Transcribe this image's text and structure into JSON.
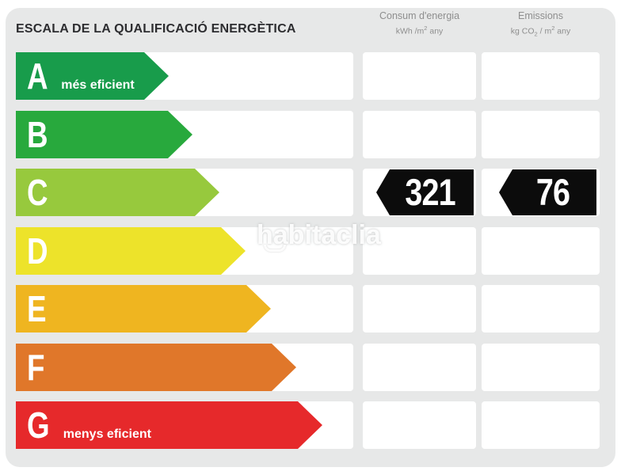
{
  "title": "ESCALA DE LA QUALIFICACIÓ ENERGÈTICA",
  "columns": {
    "consum": {
      "name": "Consum d'energia",
      "unit_pre": "kWh /m",
      "unit_sup": "2",
      "unit_post": " any"
    },
    "emissions": {
      "name": "Emissions",
      "unit_pre": "kg CO",
      "unit_sub": "2",
      "unit_mid": " / m",
      "unit_sup2": "2",
      "unit_post": " any"
    }
  },
  "scale": {
    "rows": [
      {
        "letter": "A",
        "label": "més eficient",
        "color": "#189c4b",
        "arrow_width": 193
      },
      {
        "letter": "B",
        "label": "",
        "color": "#28a93d",
        "arrow_width": 223
      },
      {
        "letter": "C",
        "label": "",
        "color": "#97c93d",
        "arrow_width": 257
      },
      {
        "letter": "D",
        "label": "",
        "color": "#ede32a",
        "arrow_width": 290
      },
      {
        "letter": "E",
        "label": "",
        "color": "#efb520",
        "arrow_width": 322
      },
      {
        "letter": "F",
        "label": "",
        "color": "#e0772a",
        "arrow_width": 354
      },
      {
        "letter": "G",
        "label": "menys eficient",
        "color": "#e6292b",
        "arrow_width": 387
      }
    ]
  },
  "values": {
    "rating": "C",
    "consum": "321",
    "emissions": "76",
    "tag_color": "#0c0c0c"
  },
  "watermark": "habitaclia",
  "theme": {
    "panel_bg": "#e7e8e8",
    "cell_bg": "#ffffff",
    "title_color": "#2d2d30",
    "header_color": "#8e8e8e"
  },
  "chart_data": {
    "type": "bar",
    "title": "ESCALA DE LA QUALIFICACIÓ ENERGÈTICA",
    "categories": [
      "A",
      "B",
      "C",
      "D",
      "E",
      "F",
      "G"
    ],
    "series": [
      {
        "name": "scale-arrow-relative-length-px",
        "values": [
          193,
          223,
          257,
          290,
          322,
          354,
          387
        ]
      }
    ],
    "category_labels": {
      "A": "més eficient",
      "G": "menys eficient"
    },
    "columns": [
      "Consum d'energia (kWh/m2 any)",
      "Emissions (kg CO2/m2 any)"
    ],
    "annotations": {
      "rating": "C",
      "consum_kwh_m2_any": 321,
      "emissions_kg_co2_m2_any": 76
    },
    "legend": false,
    "grid": false
  }
}
